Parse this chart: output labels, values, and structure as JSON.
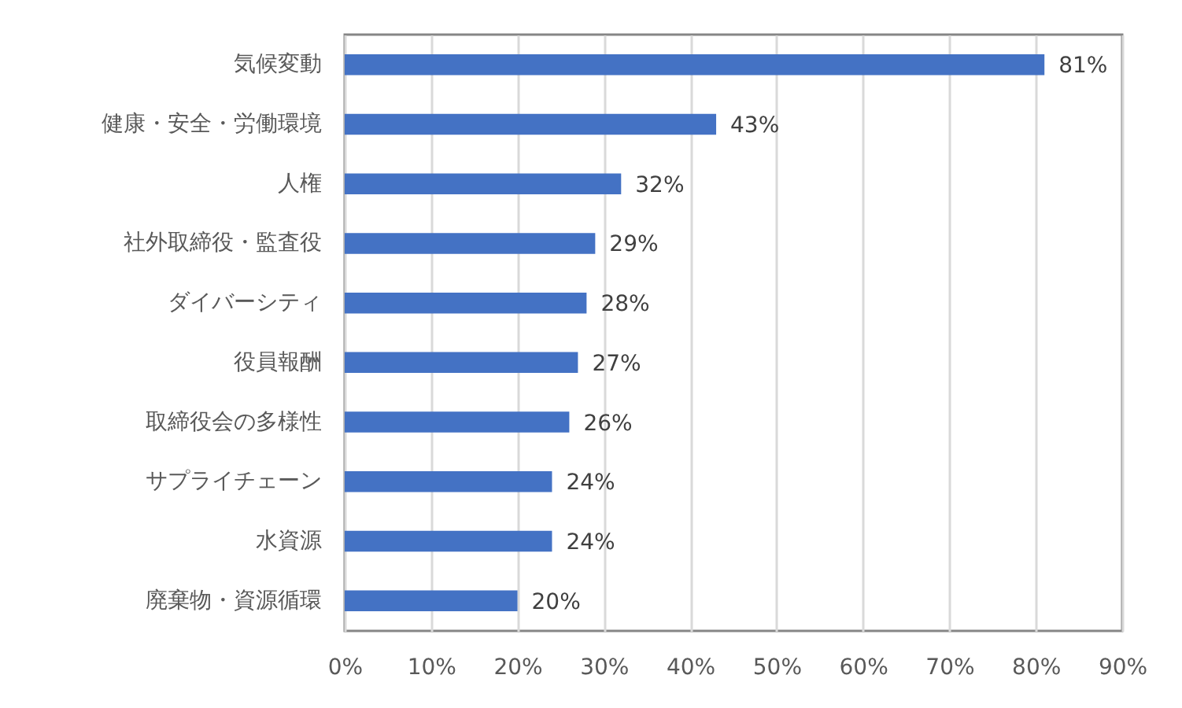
{
  "chart_data": {
    "type": "bar",
    "orientation": "horizontal",
    "categories": [
      "気候変動",
      "健康・安全・労働環境",
      "人権",
      "社外取締役・監査役",
      "ダイバーシティ",
      "役員報酬",
      "取締役会の多様性",
      "サプライチェーン",
      "水資源",
      "廃棄物・資源循環"
    ],
    "values": [
      81,
      43,
      32,
      29,
      28,
      27,
      26,
      24,
      24,
      20
    ],
    "value_labels": [
      "81%",
      "43%",
      "32%",
      "29%",
      "28%",
      "27%",
      "26%",
      "24%",
      "24%",
      "20%"
    ],
    "color": "#4472c4",
    "xlim": [
      0,
      90
    ],
    "xticks": [
      {
        "value": 0,
        "label": "0%"
      },
      {
        "value": 10,
        "label": "10%"
      },
      {
        "value": 20,
        "label": "20%"
      },
      {
        "value": 30,
        "label": "30%"
      },
      {
        "value": 40,
        "label": "40%"
      },
      {
        "value": 50,
        "label": "50%"
      },
      {
        "value": 60,
        "label": "60%"
      },
      {
        "value": 70,
        "label": "70%"
      },
      {
        "value": 80,
        "label": "80%"
      },
      {
        "value": 90,
        "label": "90%"
      }
    ],
    "grid": "x"
  }
}
